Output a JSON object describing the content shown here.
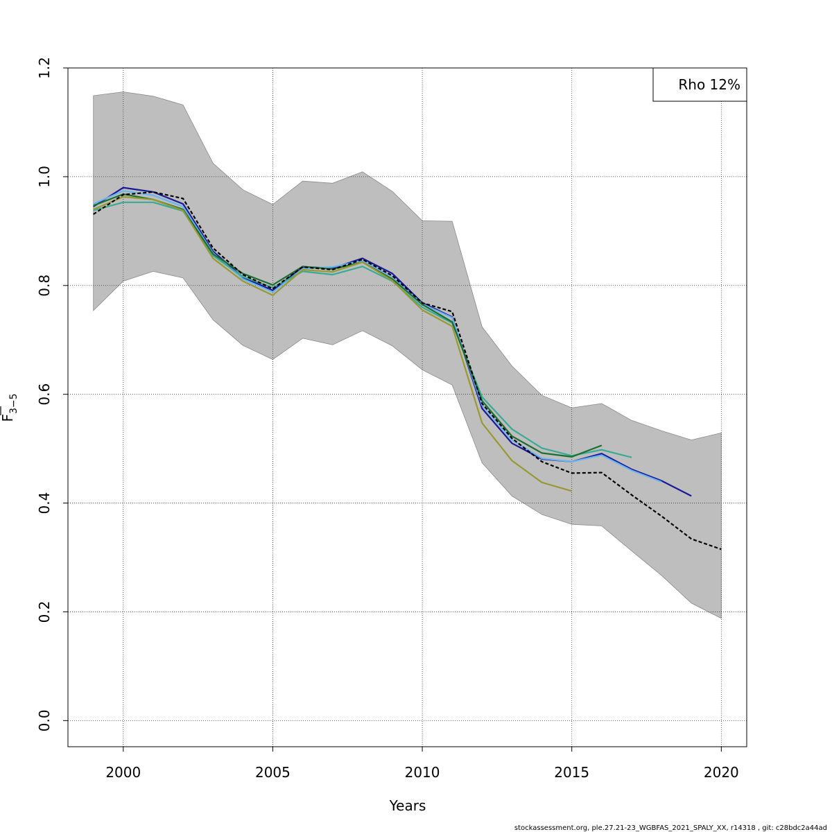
{
  "chart_data": {
    "type": "line",
    "xlabel": "Years",
    "ylabel_main": "F",
    "ylabel_sub": "3−5",
    "xlim": [
      1998.15,
      2020.85
    ],
    "ylim": [
      -0.048,
      1.2
    ],
    "x_ticks": [
      2000,
      2005,
      2010,
      2015,
      2020
    ],
    "y_ticks": [
      0.0,
      0.2,
      0.4,
      0.6,
      0.8,
      1.0,
      1.2
    ],
    "x_tick_labels": [
      "2000",
      "2005",
      "2010",
      "2015",
      "2020"
    ],
    "y_tick_labels": [
      "0.0",
      "0.2",
      "0.4",
      "0.6",
      "0.8",
      "1.0",
      "1.2"
    ],
    "grid": true,
    "legend_position": "top-right",
    "legend_text": "Rho 12%",
    "footer": "stockassessment.org, ple.27.21-23_WGBFAS_2021_SPALY_XX, r14318 , git: c28bdc2a44ad",
    "band": {
      "color": "#bebebe",
      "x": [
        1999,
        2000,
        2001,
        2002,
        2003,
        2004,
        2005,
        2006,
        2007,
        2008,
        2009,
        2010,
        2011,
        2012,
        2013,
        2014,
        2015,
        2016,
        2017,
        2018,
        2019,
        2020
      ],
      "upper": [
        1.149,
        1.156,
        1.148,
        1.132,
        1.025,
        0.976,
        0.949,
        0.992,
        0.988,
        1.009,
        0.973,
        0.919,
        0.918,
        0.724,
        0.652,
        0.598,
        0.575,
        0.583,
        0.552,
        0.533,
        0.516,
        0.529
      ],
      "lower": [
        0.754,
        0.808,
        0.826,
        0.814,
        0.737,
        0.69,
        0.664,
        0.703,
        0.691,
        0.717,
        0.689,
        0.645,
        0.617,
        0.474,
        0.413,
        0.379,
        0.361,
        0.358,
        0.312,
        0.267,
        0.216,
        0.188
      ]
    },
    "series": [
      {
        "color": "#1a1a99",
        "dashed": false,
        "x": [
          1999,
          2000,
          2001,
          2002,
          2003,
          2004,
          2005,
          2006,
          2007,
          2008,
          2009,
          2010,
          2011,
          2012,
          2013,
          2014,
          2015,
          2016,
          2017,
          2018,
          2019
        ],
        "values": [
          0.945,
          0.98,
          0.972,
          0.95,
          0.863,
          0.815,
          0.791,
          0.834,
          0.832,
          0.85,
          0.822,
          0.768,
          0.742,
          0.574,
          0.51,
          0.481,
          0.476,
          0.491,
          0.462,
          0.441,
          0.413
        ]
      },
      {
        "color": "#6cb4ee",
        "dashed": false,
        "x": [
          1999,
          2000,
          2001,
          2002,
          2003,
          2004,
          2005,
          2006,
          2007,
          2008,
          2009,
          2010,
          2011,
          2012,
          2013,
          2014,
          2015,
          2016,
          2017,
          2018
        ],
        "values": [
          0.95,
          0.974,
          0.966,
          0.945,
          0.86,
          0.812,
          0.788,
          0.831,
          0.834,
          0.846,
          0.816,
          0.766,
          0.741,
          0.58,
          0.516,
          0.482,
          0.476,
          0.488,
          0.46,
          0.439
        ]
      },
      {
        "color": "#3aaa94",
        "dashed": false,
        "x": [
          1999,
          2000,
          2001,
          2002,
          2003,
          2004,
          2005,
          2006,
          2007,
          2008,
          2009,
          2010,
          2011,
          2012,
          2013,
          2014,
          2015,
          2016,
          2017
        ],
        "values": [
          0.938,
          0.953,
          0.953,
          0.937,
          0.855,
          0.816,
          0.796,
          0.826,
          0.82,
          0.835,
          0.808,
          0.76,
          0.731,
          0.595,
          0.536,
          0.501,
          0.487,
          0.498,
          0.484
        ]
      },
      {
        "color": "#1a6e30",
        "dashed": false,
        "x": [
          1999,
          2000,
          2001,
          2002,
          2003,
          2004,
          2005,
          2006,
          2007,
          2008,
          2009,
          2010,
          2011,
          2012,
          2013,
          2014,
          2015,
          2016
        ],
        "values": [
          0.947,
          0.968,
          0.958,
          0.94,
          0.858,
          0.822,
          0.801,
          0.835,
          0.83,
          0.843,
          0.812,
          0.765,
          0.733,
          0.588,
          0.523,
          0.492,
          0.485,
          0.506
        ]
      },
      {
        "color": "#999933",
        "dashed": false,
        "x": [
          1999,
          2000,
          2001,
          2002,
          2003,
          2004,
          2005,
          2006,
          2007,
          2008,
          2009,
          2010,
          2011,
          2012,
          2013,
          2014,
          2015
        ],
        "values": [
          0.94,
          0.963,
          0.958,
          0.938,
          0.85,
          0.808,
          0.782,
          0.829,
          0.825,
          0.843,
          0.809,
          0.755,
          0.725,
          0.547,
          0.478,
          0.438,
          0.422
        ]
      },
      {
        "color": "#000000",
        "dashed": true,
        "x": [
          1999,
          2000,
          2001,
          2002,
          2003,
          2004,
          2005,
          2006,
          2007,
          2008,
          2009,
          2010,
          2011,
          2012,
          2013,
          2014,
          2015,
          2016,
          2017,
          2018,
          2019,
          2020
        ],
        "values": [
          0.931,
          0.967,
          0.972,
          0.96,
          0.869,
          0.82,
          0.794,
          0.834,
          0.829,
          0.848,
          0.818,
          0.768,
          0.752,
          0.583,
          0.519,
          0.476,
          0.455,
          0.456,
          0.415,
          0.376,
          0.334,
          0.315
        ]
      }
    ]
  }
}
